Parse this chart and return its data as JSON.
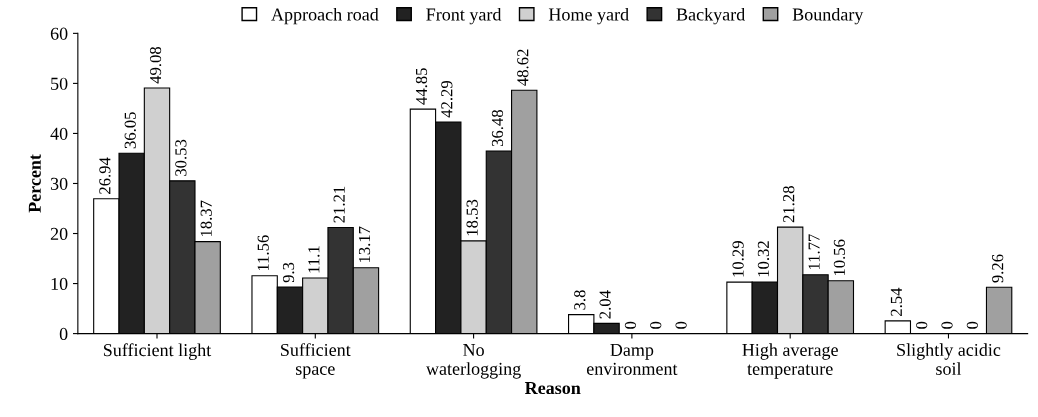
{
  "chart_data": {
    "type": "bar",
    "xlabel": "Reason",
    "ylabel": "Percent",
    "categories": [
      "Sufficient light",
      "Sufficient\nspace",
      "No\nwaterlogging",
      "Damp\nenvironment",
      "High average\ntemperature",
      "Slightly acidic\nsoil"
    ],
    "series": [
      {
        "name": "Approach road",
        "color": "#ffffff",
        "values": [
          26.94,
          11.56,
          44.85,
          3.8,
          10.29,
          2.54
        ]
      },
      {
        "name": "Front yard",
        "color": "#222222",
        "values": [
          36.05,
          9.3,
          42.29,
          2.04,
          10.32,
          0
        ]
      },
      {
        "name": "Home yard",
        "color": "#d0d0d0",
        "values": [
          49.08,
          11.1,
          18.53,
          0,
          21.28,
          0
        ]
      },
      {
        "name": "Backyard",
        "color": "#333333",
        "values": [
          30.53,
          21.21,
          36.48,
          0,
          11.77,
          0
        ]
      },
      {
        "name": "Boundary",
        "color": "#a0a0a0",
        "values": [
          18.37,
          13.17,
          48.62,
          0,
          10.56,
          9.26
        ]
      }
    ],
    "ylim": [
      0,
      60
    ],
    "yticks": [
      0,
      10,
      20,
      30,
      40,
      50,
      60
    ],
    "data_labels": true,
    "grid": false,
    "legend": "top"
  }
}
